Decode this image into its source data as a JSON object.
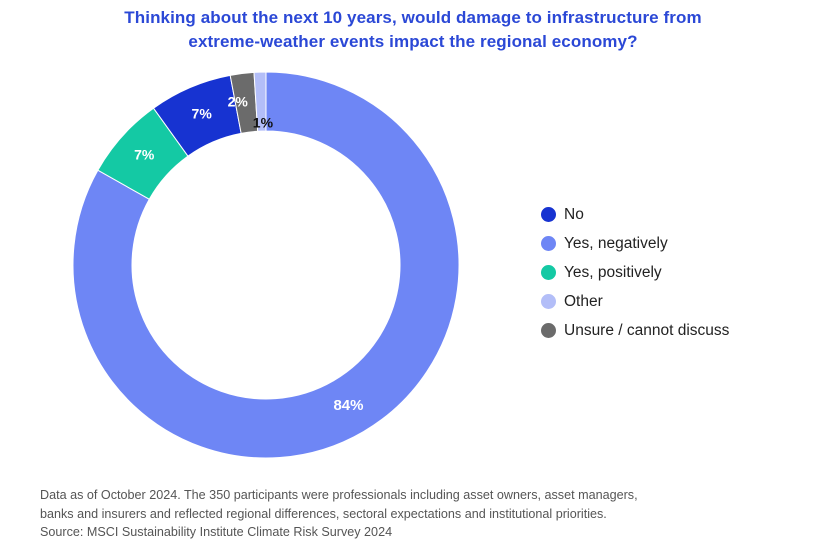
{
  "chart_data": {
    "type": "pie",
    "variant": "donut",
    "title": "Thinking about the next 10 years, would damage to infrastructure from extreme-weather events impact the regional economy?",
    "title_lines": [
      "Thinking about the next 10 years, would damage to infrastructure from",
      "extreme-weather events impact the regional economy?"
    ],
    "slices": [
      {
        "label": "Yes, negatively",
        "value": 84,
        "display": "84%",
        "color": "#6e86f5",
        "label_color": "#ffffff"
      },
      {
        "label": "Yes, positively",
        "value": 7,
        "display": "7%",
        "color": "#14c9a4",
        "label_color": "#ffffff"
      },
      {
        "label": "No",
        "value": 7,
        "display": "7%",
        "color": "#1733d1",
        "label_color": "#ffffff"
      },
      {
        "label": "Unsure / cannot discuss",
        "value": 2,
        "display": "2%",
        "color": "#6b6b6b",
        "label_color": "#ffffff"
      },
      {
        "label": "Other",
        "value": 1,
        "display": "1%",
        "color": "#b3bef8",
        "label_color": "#111111"
      }
    ],
    "legend": [
      {
        "label": "No",
        "color": "#1733d1"
      },
      {
        "label": "Yes, negatively",
        "color": "#6e86f5"
      },
      {
        "label": "Yes, positively",
        "color": "#14c9a4"
      },
      {
        "label": "Other",
        "color": "#b3bef8"
      },
      {
        "label": "Unsure / cannot discuss",
        "color": "#6b6b6b"
      }
    ],
    "legend_position": "right"
  },
  "footnote": {
    "lines": [
      "Data as of October 2024. The 350 participants were professionals including asset owners, asset managers,",
      "banks and insurers and reflected regional differences, sectoral expectations and institutional priorities.",
      "Source: MSCI Sustainability Institute Climate Risk Survey 2024"
    ]
  }
}
